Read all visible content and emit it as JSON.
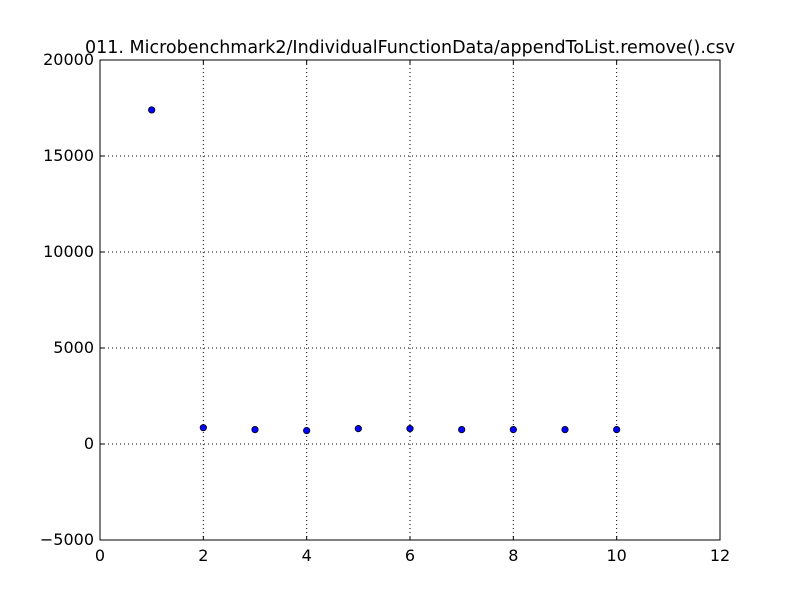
{
  "chart_data": {
    "type": "scatter",
    "title": "011. Microbenchmark2/IndividualFunctionData/appendToList.remove().csv",
    "xlabel": "",
    "ylabel": "",
    "xlim": [
      0,
      12
    ],
    "ylim": [
      -5000,
      20000
    ],
    "x_ticks": [
      0,
      2,
      4,
      6,
      8,
      10,
      12
    ],
    "y_ticks": [
      -5000,
      0,
      5000,
      10000,
      15000,
      20000
    ],
    "grid": true,
    "legend": "none",
    "series": [
      {
        "x": [
          1,
          2,
          3,
          4,
          5,
          6,
          7,
          8,
          9,
          10
        ],
        "y": [
          17400,
          850,
          750,
          700,
          800,
          800,
          750,
          750,
          750,
          750
        ],
        "color": "#0000ff"
      }
    ]
  }
}
